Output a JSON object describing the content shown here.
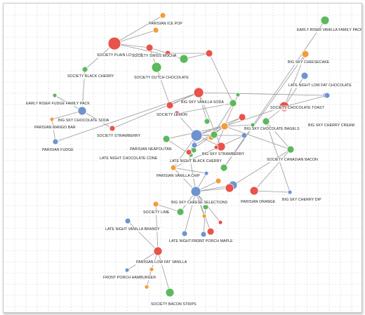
{
  "colors": {
    "red": "#e8534a",
    "green": "#5cb85c",
    "blue": "#6f93d0",
    "orange": "#f39c3a"
  },
  "nodes": [
    {
      "id": "n1",
      "c": "orange",
      "r": 4
    },
    {
      "id": "n2",
      "c": "green",
      "r": 6
    },
    {
      "id": "n3",
      "c": "orange",
      "r": 4
    },
    {
      "id": "n4",
      "c": "red",
      "r": 9
    },
    {
      "id": "n5",
      "c": "red",
      "r": 5
    },
    {
      "id": "n6",
      "c": "red",
      "r": 4
    },
    {
      "id": "n7",
      "c": "green",
      "r": 6
    },
    {
      "id": "n8",
      "c": "green",
      "r": 7
    },
    {
      "id": "n9",
      "c": "green",
      "r": 4
    },
    {
      "id": "n10",
      "c": "red",
      "r": 5
    },
    {
      "id": "n11",
      "c": "green",
      "r": 3
    },
    {
      "id": "n12",
      "c": "red",
      "r": 5
    },
    {
      "id": "n13",
      "c": "green",
      "r": 3
    },
    {
      "id": "n14",
      "c": "red",
      "r": 7
    },
    {
      "id": "n15",
      "c": "blue",
      "r": 4
    },
    {
      "id": "n16",
      "c": "blue",
      "r": 6
    },
    {
      "id": "n17",
      "c": "orange",
      "r": 3
    },
    {
      "id": "n18",
      "c": "green",
      "r": 4
    },
    {
      "id": "n19",
      "c": "red",
      "r": 4
    },
    {
      "id": "n20",
      "c": "blue",
      "r": 4
    },
    {
      "id": "n21",
      "c": "orange",
      "r": 5
    },
    {
      "id": "n22",
      "c": "red",
      "r": 5
    },
    {
      "id": "n23",
      "c": "green",
      "r": 5
    },
    {
      "id": "n24",
      "c": "red",
      "r": 4
    },
    {
      "id": "n25",
      "c": "orange",
      "r": 4
    },
    {
      "id": "n26",
      "c": "blue",
      "r": 4
    },
    {
      "id": "n27",
      "c": "red",
      "r": 6
    },
    {
      "id": "n28",
      "c": "green",
      "r": 5
    },
    {
      "id": "n29",
      "c": "green",
      "r": 4
    },
    {
      "id": "n30",
      "c": "red",
      "r": 4
    },
    {
      "id": "n31",
      "c": "blue",
      "r": 8
    },
    {
      "id": "n32",
      "c": "green",
      "r": 5
    },
    {
      "id": "n33",
      "c": "blue",
      "r": 4
    },
    {
      "id": "n34",
      "c": "green",
      "r": 3
    },
    {
      "id": "n35",
      "c": "red",
      "r": 3
    },
    {
      "id": "n36",
      "c": "red",
      "r": 4
    },
    {
      "id": "n37",
      "c": "orange",
      "r": 4
    },
    {
      "id": "n38",
      "c": "green",
      "r": 5
    },
    {
      "id": "n39",
      "c": "green",
      "r": 3
    },
    {
      "id": "n40",
      "c": "red",
      "r": 7
    },
    {
      "id": "n41",
      "c": "blue",
      "r": 4
    },
    {
      "id": "n42",
      "c": "orange",
      "r": 5
    },
    {
      "id": "n43",
      "c": "blue",
      "r": 5
    },
    {
      "id": "n44",
      "c": "green",
      "r": 5
    },
    {
      "id": "n45",
      "c": "green",
      "r": 5
    },
    {
      "id": "n46",
      "c": "red",
      "r": 6
    },
    {
      "id": "n47",
      "c": "blue",
      "r": 3
    },
    {
      "id": "n48",
      "c": "blue",
      "r": 3
    },
    {
      "id": "n49",
      "c": "orange",
      "r": 4
    },
    {
      "id": "n50",
      "c": "blue",
      "r": 7
    },
    {
      "id": "n51",
      "c": "blue",
      "r": 6
    },
    {
      "id": "n52",
      "c": "red",
      "r": 6
    },
    {
      "id": "n53",
      "c": "orange",
      "r": 4
    },
    {
      "id": "n54",
      "c": "green",
      "r": 5
    },
    {
      "id": "n55",
      "c": "green",
      "r": 4
    },
    {
      "id": "n56",
      "c": "blue",
      "r": 4
    },
    {
      "id": "n57",
      "c": "red",
      "r": 5
    },
    {
      "id": "n58",
      "c": "orange",
      "r": 3
    },
    {
      "id": "n59",
      "c": "red",
      "r": 3
    },
    {
      "id": "n60",
      "c": "blue",
      "r": 4
    },
    {
      "id": "n61",
      "c": "red",
      "r": 6
    },
    {
      "id": "n62",
      "c": "blue",
      "r": 3
    },
    {
      "id": "n63",
      "c": "orange",
      "r": 3
    },
    {
      "id": "n64",
      "c": "green",
      "r": 6
    },
    {
      "id": "n65",
      "c": "blue",
      "r": 4
    },
    {
      "id": "n66",
      "c": "orange",
      "r": 3
    }
  ],
  "edges": [
    [
      "n1",
      "n4"
    ],
    [
      "n3",
      "n4"
    ],
    [
      "n4",
      "n5"
    ],
    [
      "n5",
      "n6"
    ],
    [
      "n5",
      "n8"
    ],
    [
      "n4",
      "n7"
    ],
    [
      "n6",
      "n10"
    ],
    [
      "n8",
      "n12"
    ],
    [
      "n12",
      "n14"
    ],
    [
      "n14",
      "n15"
    ],
    [
      "n14",
      "n18"
    ],
    [
      "n14",
      "n20"
    ],
    [
      "n16",
      "n13"
    ],
    [
      "n16",
      "n17"
    ],
    [
      "n16",
      "n19"
    ],
    [
      "n16",
      "n9"
    ],
    [
      "n9",
      "n4"
    ],
    [
      "n19",
      "n14"
    ],
    [
      "n17",
      "n20"
    ],
    [
      "n7",
      "n10"
    ],
    [
      "n10",
      "n23"
    ],
    [
      "n23",
      "n24"
    ],
    [
      "n24",
      "n31"
    ],
    [
      "n31",
      "n21"
    ],
    [
      "n21",
      "n11"
    ],
    [
      "n21",
      "n32"
    ],
    [
      "n21",
      "n33"
    ],
    [
      "n21",
      "n35"
    ],
    [
      "n21",
      "n39"
    ],
    [
      "n21",
      "n40"
    ],
    [
      "n21",
      "n36"
    ],
    [
      "n40",
      "n41"
    ],
    [
      "n40",
      "n42"
    ],
    [
      "n40",
      "n43"
    ],
    [
      "n40",
      "n44"
    ],
    [
      "n42",
      "n38"
    ],
    [
      "n38",
      "n2"
    ],
    [
      "n44",
      "n45"
    ],
    [
      "n44",
      "n47"
    ],
    [
      "n32",
      "n34"
    ],
    [
      "n31",
      "n26"
    ],
    [
      "n31",
      "n28"
    ],
    [
      "n31",
      "n29"
    ],
    [
      "n31",
      "n30"
    ],
    [
      "n26",
      "n37"
    ],
    [
      "n37",
      "n50"
    ],
    [
      "n37",
      "n48"
    ],
    [
      "n31",
      "n37"
    ],
    [
      "n48",
      "n50"
    ],
    [
      "n49",
      "n50"
    ],
    [
      "n50",
      "n51"
    ],
    [
      "n50",
      "n52"
    ],
    [
      "n45",
      "n51"
    ],
    [
      "n21",
      "n45"
    ],
    [
      "n45",
      "n46"
    ],
    [
      "n46",
      "n47"
    ],
    [
      "n50",
      "n54"
    ],
    [
      "n50",
      "n55"
    ],
    [
      "n50",
      "n56"
    ],
    [
      "n50",
      "n57"
    ],
    [
      "n50",
      "n58"
    ],
    [
      "n50",
      "n59"
    ],
    [
      "n53",
      "n54"
    ],
    [
      "n53",
      "n61"
    ],
    [
      "n55",
      "n60"
    ],
    [
      "n61",
      "n62"
    ],
    [
      "n61",
      "n63"
    ],
    [
      "n61",
      "n65"
    ],
    [
      "n61",
      "n64"
    ],
    [
      "n63",
      "n66"
    ],
    [
      "n22",
      "n31"
    ],
    [
      "n22",
      "n21"
    ],
    [
      "n27",
      "n31"
    ],
    [
      "n27",
      "n14"
    ],
    [
      "n25",
      "n23"
    ],
    [
      "n36",
      "n50"
    ]
  ],
  "labels": [
    {
      "id": "l1",
      "t": "PARISIAN ICE POP"
    },
    {
      "id": "l2",
      "t": "EARLY RISER VANILLA FAMILY PACK"
    },
    {
      "id": "l3",
      "t": "SOCIETY PLAIN LOW FAT"
    },
    {
      "id": "l4",
      "t": "SOCIETY SWISS MOCHA"
    },
    {
      "id": "l5",
      "t": "BIG SKY CHEESECAKE"
    },
    {
      "id": "l6",
      "t": "SOCIETY BLACK CHERRY"
    },
    {
      "id": "l7",
      "t": "SOCIETY DUTCH CHOCOLATE"
    },
    {
      "id": "l8",
      "t": "LATE NIGHT LOW FAT CHOCOLATE"
    },
    {
      "id": "l9",
      "t": "EARLY RISER FUDGE FAMILY PACK"
    },
    {
      "id": "l10",
      "t": "BIG SKY VANILLA SODA"
    },
    {
      "id": "l11",
      "t": "SOCIETY CHOCOLATE TOAST"
    },
    {
      "id": "l12",
      "t": "BIG SKY CHOCOLATE SODA"
    },
    {
      "id": "l13",
      "t": "SOCIETY LEMON"
    },
    {
      "id": "l14",
      "t": "PARISIAN MANGO BAR"
    },
    {
      "id": "l15",
      "t": "BIG SKY CHERRY CREAM"
    },
    {
      "id": "l16",
      "t": "BIG SKY CHOCOLATE BAGELS"
    },
    {
      "id": "l17",
      "t": "SOCIETY STRAWBERRY"
    },
    {
      "id": "l18",
      "t": "PARISIAN FUDGE"
    },
    {
      "id": "l19",
      "t": "PARISIAN NEAPOLITAN"
    },
    {
      "id": "l20",
      "t": "BIG SKY STRAWBERRY"
    },
    {
      "id": "l21",
      "t": "LATE NIGHT CHOCOLATE CONE"
    },
    {
      "id": "l22",
      "t": "LATE NIGHT BLACK CHERRY"
    },
    {
      "id": "l23",
      "t": "SOCIETY CANADIAN BACON"
    },
    {
      "id": "l24",
      "t": "PARISIAN VANILLA CHIP"
    },
    {
      "id": "l25",
      "t": "PARISIAN ORANGE"
    },
    {
      "id": "l26",
      "t": "BIG SKY CHERRY DIP"
    },
    {
      "id": "l27",
      "t": "BIG SKY CHEESE SELECTIONS"
    },
    {
      "id": "l28",
      "t": "SOCIETY LIME"
    },
    {
      "id": "l29",
      "t": "LATE NIGHT VANILLA BRANDY"
    },
    {
      "id": "l30",
      "t": "LATE NIGHT PEACH"
    },
    {
      "id": "l31",
      "t": "FRONT PORCH MAPLE"
    },
    {
      "id": "l32",
      "t": "PARISIAN LOW FAT VANILLA"
    },
    {
      "id": "l33",
      "t": "FRONT PORCH HAMBURGER"
    },
    {
      "id": "l34",
      "t": "SOCIETY BACON STRIPS"
    }
  ]
}
